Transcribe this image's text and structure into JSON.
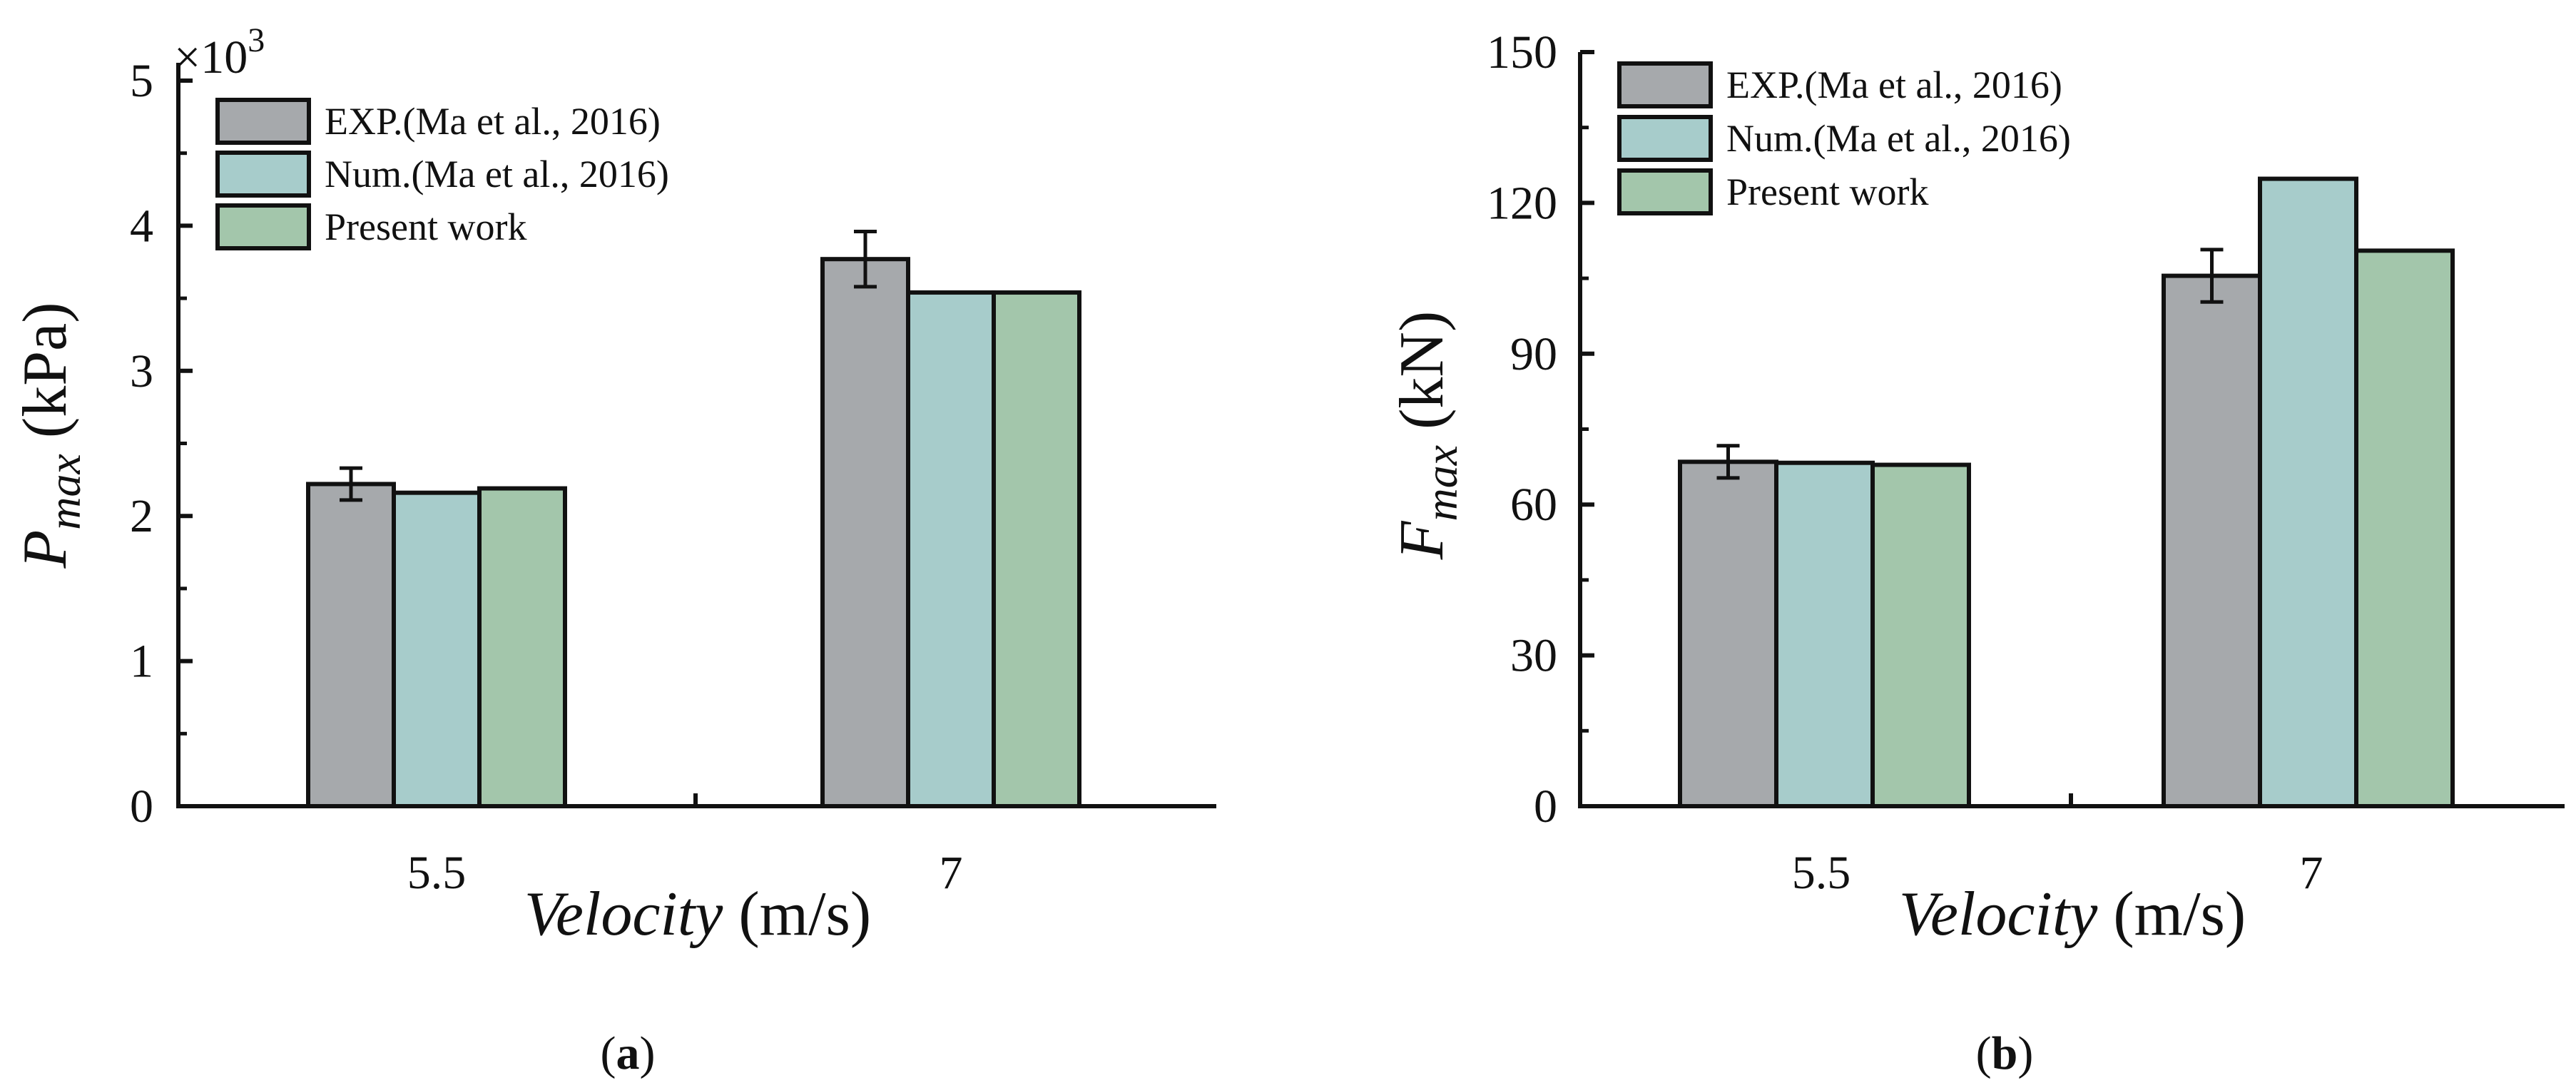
{
  "figure": {
    "panel_labels": [
      "(a)",
      "(b)"
    ]
  },
  "chart_data": [
    {
      "type": "bar",
      "panel": "(a)",
      "categories": [
        "5.5",
        "7"
      ],
      "series": [
        {
          "name": "EXP.(Ma et al., 2016)",
          "values": [
            2.22,
            3.77
          ],
          "error": [
            0.11,
            0.19
          ],
          "color": "#a6a9ac"
        },
        {
          "name": "Num.(Ma et al., 2016)",
          "values": [
            2.16,
            3.54
          ],
          "color": "#a7cccb"
        },
        {
          "name": "Present work",
          "values": [
            2.19,
            3.54
          ],
          "color": "#a3c6ab"
        }
      ],
      "xlabel": {
        "italic": "Velocity",
        "normal": " (m/s)"
      },
      "ylabel": {
        "base": "P",
        "sub": "max",
        "unit": " (kPa)"
      },
      "ylim": [
        0,
        5
      ],
      "yticks": [
        "0",
        "1",
        "2",
        "3",
        "4",
        "5"
      ],
      "multiplier": {
        "base": "×10",
        "exp": "3"
      },
      "legend_position": "top-left"
    },
    {
      "type": "bar",
      "panel": "(b)",
      "categories": [
        "5.5",
        "7"
      ],
      "series": [
        {
          "name": "EXP.(Ma et al., 2016)",
          "values": [
            68.5,
            105.5
          ],
          "error": [
            3.2,
            5.2
          ],
          "color": "#a6a9ac"
        },
        {
          "name": "Num.(Ma et al., 2016)",
          "values": [
            68.3,
            124.8
          ],
          "color": "#a7cccb"
        },
        {
          "name": "Present work",
          "values": [
            67.9,
            110.5
          ],
          "color": "#a3c6ab"
        }
      ],
      "xlabel": {
        "italic": "Velocity",
        "normal": " (m/s)"
      },
      "ylabel": {
        "base": "F",
        "sub": "max",
        "unit": " (kN)"
      },
      "ylim": [
        0,
        150
      ],
      "yticks": [
        "0",
        "30",
        "60",
        "90",
        "120",
        "150"
      ],
      "legend_position": "top-left"
    }
  ]
}
